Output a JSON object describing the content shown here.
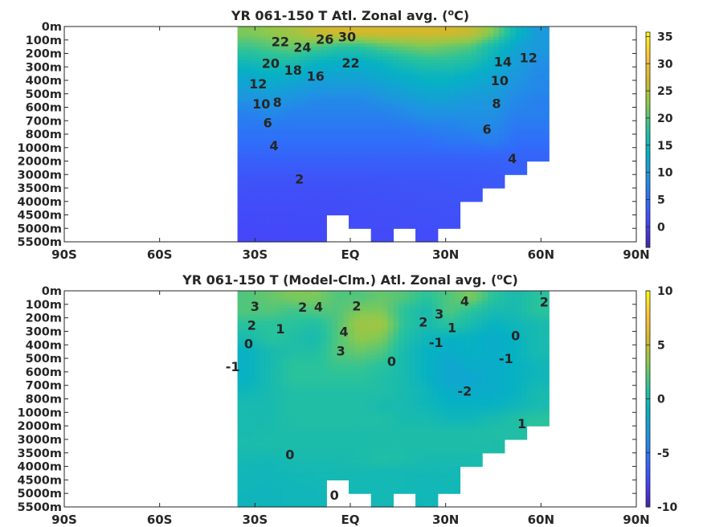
{
  "chart_data": [
    {
      "type": "heatmap",
      "title": "YR 061-150 T Atl. Zonal avg. (",
      "title_sup": "o",
      "title_end": "C)",
      "x_ticks": [
        "90S",
        "60S",
        "30S",
        "EQ",
        "30N",
        "60N",
        "90N"
      ],
      "x_tick_values": [
        -90,
        -60,
        -30,
        0,
        30,
        60,
        90
      ],
      "y_ticks": [
        "0m",
        "100m",
        "200m",
        "300m",
        "400m",
        "500m",
        "600m",
        "700m",
        "800m",
        "1000m",
        "2000m",
        "3000m",
        "3500m",
        "4000m",
        "4500m",
        "5000m",
        "5500m"
      ],
      "y_tick_values": [
        0,
        100,
        200,
        300,
        400,
        500,
        600,
        700,
        800,
        1000,
        2000,
        3000,
        3500,
        4000,
        4500,
        5000,
        5500
      ],
      "lat_centers": [
        -32,
        -25,
        -18,
        -11,
        -4,
        3,
        10,
        17,
        24,
        31,
        38,
        45,
        52,
        59
      ],
      "values": [
        [
          22,
          23,
          24,
          26,
          27,
          27,
          27,
          27,
          27,
          27,
          26,
          22,
          15,
          10
        ],
        [
          19,
          20,
          21,
          20,
          18,
          18,
          20,
          21,
          22,
          21,
          20,
          16,
          12,
          10
        ],
        [
          16,
          17,
          17,
          15,
          14,
          14,
          15,
          17,
          18,
          18,
          17,
          14,
          11,
          9
        ],
        [
          13,
          14,
          14,
          12,
          12,
          12,
          13,
          14,
          15,
          15,
          14,
          12,
          10,
          8
        ],
        [
          11,
          12,
          11,
          10,
          10,
          10,
          11,
          12,
          13,
          13,
          12,
          11,
          9,
          8
        ],
        [
          9,
          10,
          9,
          8,
          8,
          8,
          9,
          10,
          11,
          11,
          10,
          10,
          8,
          7
        ],
        [
          7,
          8,
          7,
          7,
          7,
          7,
          7,
          8,
          9,
          9,
          9,
          9,
          7,
          7
        ],
        [
          6,
          6,
          6,
          6,
          6,
          6,
          6,
          6,
          7,
          7,
          8,
          8,
          6,
          6
        ],
        [
          5,
          5,
          5,
          5,
          5,
          5,
          5,
          5,
          5,
          6,
          6,
          7,
          5,
          5
        ],
        [
          4,
          4,
          4,
          4,
          4,
          4,
          4,
          4,
          4,
          4,
          4,
          4,
          4,
          4
        ],
        [
          3,
          3,
          3,
          3,
          3,
          3,
          3,
          3,
          3,
          3,
          3,
          3.2,
          3.5,
          null
        ],
        [
          2.2,
          2.1,
          2.1,
          2.1,
          2.1,
          2.1,
          2.2,
          2.3,
          2.4,
          2.5,
          2.6,
          2.7,
          null,
          null
        ],
        [
          1.8,
          1.8,
          1.8,
          1.8,
          1.8,
          1.9,
          2,
          2.1,
          2.2,
          2.3,
          2.4,
          null,
          null,
          null
        ],
        [
          1.5,
          1.5,
          1.5,
          1.6,
          1.6,
          1.7,
          1.8,
          1.9,
          2,
          2.1,
          null,
          null,
          null,
          null
        ],
        [
          1.2,
          1.3,
          1.3,
          1.4,
          null,
          1.5,
          1.6,
          1.7,
          1.8,
          1.9,
          null,
          null,
          null,
          null
        ],
        [
          1.0,
          1.1,
          1.2,
          1.2,
          null,
          null,
          1.4,
          null,
          1.5,
          null,
          null,
          null,
          null,
          null
        ]
      ],
      "colorbar": {
        "range": [
          -3.8,
          35.8
        ],
        "ticks": [
          "35",
          "30",
          "25",
          "20",
          "15",
          "10",
          "5",
          "0"
        ],
        "tick_values": [
          35,
          30,
          25,
          20,
          15,
          10,
          5,
          0
        ]
      },
      "contour_labels": [
        {
          "t": "30",
          "lat": -1,
          "d": 20
        },
        {
          "t": "26",
          "lat": -5,
          "d": 40
        },
        {
          "t": "24",
          "lat": -9,
          "d": 45
        },
        {
          "t": "22",
          "lat": -12,
          "d": 55
        },
        {
          "t": "22",
          "lat": -19,
          "d": 110
        },
        {
          "t": "20",
          "lat": -19,
          "d": 165
        },
        {
          "t": "18",
          "lat": -18,
          "d": 215
        },
        {
          "t": "16",
          "lat": -17,
          "d": 260
        },
        {
          "t": "12",
          "lat": -29,
          "d": 370
        },
        {
          "t": "10",
          "lat": -28,
          "d": 465
        },
        {
          "t": "8",
          "lat": -26,
          "d": 560
        },
        {
          "t": "6",
          "lat": -26,
          "d": 660
        },
        {
          "t": "4",
          "lat": -24,
          "d": 860
        },
        {
          "t": "2",
          "lat": -16,
          "d": 3150
        },
        {
          "t": "14",
          "lat": 48,
          "d": 260
        },
        {
          "t": "12",
          "lat": 50,
          "d": 230
        },
        {
          "t": "10",
          "lat": 47,
          "d": 400
        },
        {
          "t": "8",
          "lat": 46,
          "d": 570
        },
        {
          "t": "6",
          "lat": 43,
          "d": 760
        },
        {
          "t": "4",
          "lat": 51,
          "d": 1800
        }
      ]
    },
    {
      "type": "heatmap",
      "title": "YR 061-150 T (Model-Clm.) Atl. Zonal avg. (",
      "title_sup": "o",
      "title_end": "C)",
      "x_ticks": [
        "90S",
        "60S",
        "30S",
        "EQ",
        "30N",
        "60N",
        "90N"
      ],
      "x_tick_values": [
        -90,
        -60,
        -30,
        0,
        30,
        60,
        90
      ],
      "y_ticks": [
        "0m",
        "100m",
        "200m",
        "300m",
        "400m",
        "500m",
        "600m",
        "700m",
        "800m",
        "1000m",
        "2000m",
        "3000m",
        "3500m",
        "4000m",
        "4500m",
        "5000m",
        "5500m"
      ],
      "y_tick_values": [
        0,
        100,
        200,
        300,
        400,
        500,
        600,
        700,
        800,
        1000,
        2000,
        3000,
        3500,
        4000,
        4500,
        5000,
        5500
      ],
      "lat_centers": [
        -32,
        -25,
        -18,
        -11,
        -4,
        3,
        10,
        17,
        24,
        31,
        38,
        45,
        52,
        59
      ],
      "values": [
        [
          2,
          2.5,
          3,
          3,
          2,
          2,
          2.5,
          2,
          1,
          2,
          3,
          1,
          0,
          1
        ],
        [
          2,
          2,
          1.5,
          2,
          2,
          3,
          3,
          1,
          0,
          2,
          1,
          0,
          0,
          1
        ],
        [
          1,
          1,
          1,
          0.5,
          2,
          4,
          4,
          1,
          0,
          1,
          0,
          -1,
          -0.5,
          0
        ],
        [
          0,
          1,
          0.5,
          0,
          2,
          3.5,
          3,
          0.5,
          -0.5,
          -1,
          -1,
          -1.5,
          -1,
          0
        ],
        [
          -1,
          0,
          0.5,
          0.5,
          2,
          2.5,
          2,
          0,
          -1,
          -1.5,
          -1,
          -1.5,
          -1,
          0
        ],
        [
          -1,
          0,
          1,
          1,
          1.5,
          1.5,
          1,
          0,
          -1,
          -2,
          -1.5,
          -1.5,
          -1,
          -0.5
        ],
        [
          -1,
          0,
          1,
          1,
          1,
          1,
          0.5,
          0,
          -1,
          -2,
          -2,
          -1.5,
          -1,
          -0.5
        ],
        [
          -0.5,
          0,
          0.5,
          0.5,
          0.5,
          0.5,
          0.5,
          0,
          -0.5,
          -1.5,
          -1.5,
          -1.5,
          -1,
          0
        ],
        [
          0,
          0,
          0.5,
          0.5,
          0.5,
          0.5,
          0,
          0,
          -0.5,
          -1,
          -1,
          -1,
          -0.5,
          0
        ],
        [
          0,
          0,
          0.5,
          0.5,
          0.5,
          0.5,
          0.5,
          0,
          0,
          -0.5,
          -0.5,
          0,
          0.5,
          1
        ],
        [
          0,
          0.2,
          0.3,
          0.3,
          0.3,
          0.3,
          0.3,
          0.3,
          0.3,
          0.3,
          0.3,
          0.5,
          0.5,
          null
        ],
        [
          0.2,
          0.2,
          0.2,
          0.2,
          0.2,
          0.2,
          0.3,
          0.3,
          0.3,
          0.3,
          0.3,
          0.3,
          null,
          null
        ],
        [
          -0.2,
          -0.3,
          0,
          0,
          0,
          0.2,
          0.5,
          0.3,
          0,
          0,
          0,
          null,
          null,
          null
        ],
        [
          -0.5,
          -0.5,
          -0.3,
          -0.3,
          -0.2,
          -0.2,
          -0.3,
          -0.3,
          -0.3,
          -0.3,
          null,
          null,
          null,
          null
        ],
        [
          -0.5,
          -0.6,
          -0.5,
          -0.4,
          null,
          -0.3,
          -0.3,
          -0.3,
          -0.4,
          -0.4,
          null,
          null,
          null,
          null
        ],
        [
          -0.6,
          -0.6,
          -0.5,
          -0.5,
          null,
          null,
          -0.3,
          null,
          -0.4,
          null,
          null,
          null,
          null,
          null
        ]
      ],
      "colorbar": {
        "range": [
          -10,
          10
        ],
        "ticks": [
          "10",
          "5",
          "0",
          "-5",
          "-10"
        ],
        "tick_values": [
          10,
          5,
          0,
          -5,
          -10
        ]
      },
      "contour_labels": [
        {
          "t": "3",
          "lat": -30,
          "d": 60
        },
        {
          "t": "4",
          "lat": -10,
          "d": 10
        },
        {
          "t": "2",
          "lat": -15,
          "d": 120
        },
        {
          "t": "2",
          "lat": 2,
          "d": 110
        },
        {
          "t": "2",
          "lat": -31,
          "d": 200
        },
        {
          "t": "1",
          "lat": -22,
          "d": 280
        },
        {
          "t": "0",
          "lat": -32,
          "d": 390
        },
        {
          "t": "-1",
          "lat": -37,
          "d": 560
        },
        {
          "t": "4",
          "lat": -2,
          "d": 300
        },
        {
          "t": "3",
          "lat": -3,
          "d": 390
        },
        {
          "t": "0",
          "lat": 13,
          "d": 520
        },
        {
          "t": "3",
          "lat": 28,
          "d": 170
        },
        {
          "t": "2",
          "lat": 26,
          "d": 230
        },
        {
          "t": "1",
          "lat": 32,
          "d": 270
        },
        {
          "t": "-1",
          "lat": 27,
          "d": 380
        },
        {
          "t": "-2",
          "lat": 36,
          "d": 740
        },
        {
          "t": "0",
          "lat": 52,
          "d": 330
        },
        {
          "t": "-1",
          "lat": 49,
          "d": 500
        },
        {
          "t": "4",
          "lat": 36,
          "d": 20
        },
        {
          "t": "2",
          "lat": 61,
          "d": 80
        },
        {
          "t": "1",
          "lat": 54,
          "d": 1800
        },
        {
          "t": "0",
          "lat": -19,
          "d": 3550
        },
        {
          "t": "0",
          "lat": -5,
          "d": 5050
        }
      ]
    }
  ],
  "colormap": [
    "#3e26a8",
    "#4743f8",
    "#2f6ff9",
    "#1e95e0",
    "#06b1c4",
    "#2bc39a",
    "#8bc94e",
    "#d4b82c",
    "#fbc33b",
    "#f9fb0e"
  ]
}
